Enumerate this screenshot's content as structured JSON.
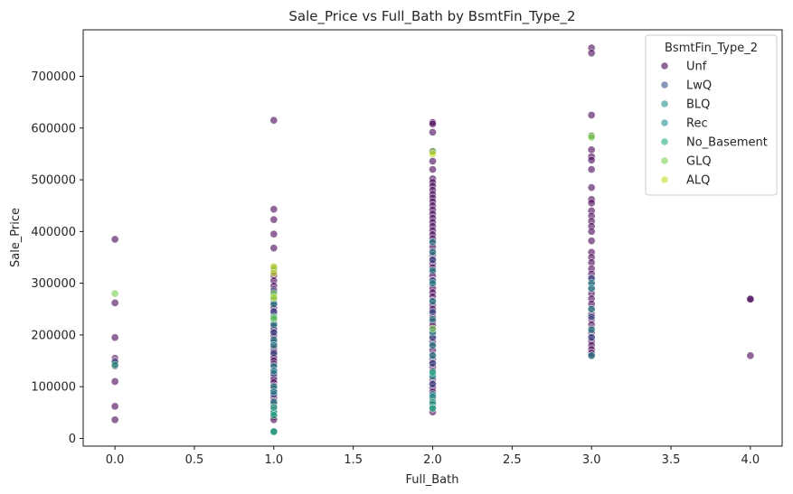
{
  "chart_data": {
    "type": "scatter",
    "title": "Sale_Price vs Full_Bath by BsmtFin_Type_2",
    "xlabel": "Full_Bath",
    "ylabel": "Sale_Price",
    "xlim": [
      -0.2,
      4.2
    ],
    "ylim": [
      -15000,
      790000
    ],
    "x_ticks": [
      0.0,
      0.5,
      1.0,
      1.5,
      2.0,
      2.5,
      3.0,
      3.5,
      4.0
    ],
    "x_tick_labels": [
      "0.0",
      "0.5",
      "1.0",
      "1.5",
      "2.0",
      "2.5",
      "3.0",
      "3.5",
      "4.0"
    ],
    "y_ticks": [
      0,
      100000,
      200000,
      300000,
      400000,
      500000,
      600000,
      700000
    ],
    "y_tick_labels": [
      "0",
      "100000",
      "200000",
      "300000",
      "400000",
      "500000",
      "600000",
      "700000"
    ],
    "grid": false,
    "legend": {
      "title": "BsmtFin_Type_2",
      "placement": "top-right"
    },
    "marker_alpha": 0.6,
    "series": [
      {
        "name": "Unf",
        "color": "#440154",
        "points": [
          [
            0,
            385000
          ],
          [
            0,
            262000
          ],
          [
            0,
            195000
          ],
          [
            0,
            155000
          ],
          [
            0,
            150000
          ],
          [
            0,
            145000
          ],
          [
            0,
            140000
          ],
          [
            0,
            110000
          ],
          [
            0,
            62000
          ],
          [
            0,
            36000
          ],
          [
            1,
            615000
          ],
          [
            1,
            443000
          ],
          [
            1,
            423000
          ],
          [
            1,
            395000
          ],
          [
            1,
            368000
          ],
          [
            1,
            330000
          ],
          [
            1,
            325000
          ],
          [
            1,
            315000
          ],
          [
            1,
            305000
          ],
          [
            1,
            295000
          ],
          [
            1,
            288000
          ],
          [
            1,
            282000
          ],
          [
            1,
            276000
          ],
          [
            1,
            270000
          ],
          [
            1,
            264000
          ],
          [
            1,
            258000
          ],
          [
            1,
            252000
          ],
          [
            1,
            246000
          ],
          [
            1,
            240000
          ],
          [
            1,
            234000
          ],
          [
            1,
            228000
          ],
          [
            1,
            222000
          ],
          [
            1,
            216000
          ],
          [
            1,
            210000
          ],
          [
            1,
            204000
          ],
          [
            1,
            198000
          ],
          [
            1,
            192000
          ],
          [
            1,
            186000
          ],
          [
            1,
            180000
          ],
          [
            1,
            174000
          ],
          [
            1,
            168000
          ],
          [
            1,
            162000
          ],
          [
            1,
            156000
          ],
          [
            1,
            150000
          ],
          [
            1,
            144000
          ],
          [
            1,
            138000
          ],
          [
            1,
            132000
          ],
          [
            1,
            126000
          ],
          [
            1,
            120000
          ],
          [
            1,
            114000
          ],
          [
            1,
            108000
          ],
          [
            1,
            102000
          ],
          [
            1,
            96000
          ],
          [
            1,
            90000
          ],
          [
            1,
            84000
          ],
          [
            1,
            78000
          ],
          [
            1,
            72000
          ],
          [
            1,
            66000
          ],
          [
            1,
            60000
          ],
          [
            1,
            54000
          ],
          [
            1,
            48000
          ],
          [
            1,
            42000
          ],
          [
            1,
            36000
          ],
          [
            1,
            13000
          ],
          [
            2,
            611000
          ],
          [
            2,
            608000
          ],
          [
            2,
            592000
          ],
          [
            2,
            555000
          ],
          [
            2,
            536000
          ],
          [
            2,
            520000
          ],
          [
            2,
            502000
          ],
          [
            2,
            495000
          ],
          [
            2,
            488000
          ],
          [
            2,
            480000
          ],
          [
            2,
            472000
          ],
          [
            2,
            465000
          ],
          [
            2,
            458000
          ],
          [
            2,
            450000
          ],
          [
            2,
            442000
          ],
          [
            2,
            434000
          ],
          [
            2,
            426000
          ],
          [
            2,
            418000
          ],
          [
            2,
            410000
          ],
          [
            2,
            402000
          ],
          [
            2,
            394000
          ],
          [
            2,
            386000
          ],
          [
            2,
            378000
          ],
          [
            2,
            370000
          ],
          [
            2,
            362000
          ],
          [
            2,
            354000
          ],
          [
            2,
            346000
          ],
          [
            2,
            338000
          ],
          [
            2,
            330000
          ],
          [
            2,
            322000
          ],
          [
            2,
            314000
          ],
          [
            2,
            306000
          ],
          [
            2,
            298000
          ],
          [
            2,
            290000
          ],
          [
            2,
            282000
          ],
          [
            2,
            274000
          ],
          [
            2,
            266000
          ],
          [
            2,
            258000
          ],
          [
            2,
            250000
          ],
          [
            2,
            242000
          ],
          [
            2,
            234000
          ],
          [
            2,
            226000
          ],
          [
            2,
            218000
          ],
          [
            2,
            210000
          ],
          [
            2,
            202000
          ],
          [
            2,
            194000
          ],
          [
            2,
            186000
          ],
          [
            2,
            178000
          ],
          [
            2,
            170000
          ],
          [
            2,
            162000
          ],
          [
            2,
            154000
          ],
          [
            2,
            146000
          ],
          [
            2,
            138000
          ],
          [
            2,
            130000
          ],
          [
            2,
            122000
          ],
          [
            2,
            114000
          ],
          [
            2,
            106000
          ],
          [
            2,
            98000
          ],
          [
            2,
            90000
          ],
          [
            2,
            82000
          ],
          [
            2,
            74000
          ],
          [
            2,
            66000
          ],
          [
            2,
            58000
          ],
          [
            2,
            51000
          ],
          [
            3,
            755000
          ],
          [
            3,
            745000
          ],
          [
            3,
            625000
          ],
          [
            3,
            585000
          ],
          [
            3,
            558000
          ],
          [
            3,
            545000
          ],
          [
            3,
            538000
          ],
          [
            3,
            520000
          ],
          [
            3,
            485000
          ],
          [
            3,
            462000
          ],
          [
            3,
            455000
          ],
          [
            3,
            440000
          ],
          [
            3,
            430000
          ],
          [
            3,
            420000
          ],
          [
            3,
            410000
          ],
          [
            3,
            400000
          ],
          [
            3,
            382000
          ],
          [
            3,
            360000
          ],
          [
            3,
            350000
          ],
          [
            3,
            340000
          ],
          [
            3,
            328000
          ],
          [
            3,
            318000
          ],
          [
            3,
            308000
          ],
          [
            3,
            300000
          ],
          [
            3,
            290000
          ],
          [
            3,
            280000
          ],
          [
            3,
            270000
          ],
          [
            3,
            260000
          ],
          [
            3,
            250000
          ],
          [
            3,
            240000
          ],
          [
            3,
            230000
          ],
          [
            3,
            220000
          ],
          [
            3,
            212000
          ],
          [
            3,
            204000
          ],
          [
            3,
            196000
          ],
          [
            3,
            188000
          ],
          [
            3,
            180000
          ],
          [
            3,
            172000
          ],
          [
            3,
            165000
          ],
          [
            3,
            160000
          ],
          [
            4,
            270000
          ],
          [
            4,
            269000
          ],
          [
            4,
            160000
          ]
        ]
      },
      {
        "name": "LwQ",
        "color": "#3b528b",
        "points": [
          [
            0,
            148000
          ],
          [
            1,
            285000
          ],
          [
            1,
            245000
          ],
          [
            1,
            205000
          ],
          [
            1,
            165000
          ],
          [
            1,
            125000
          ],
          [
            1,
            85000
          ],
          [
            1,
            55000
          ],
          [
            2,
            345000
          ],
          [
            2,
            305000
          ],
          [
            2,
            245000
          ],
          [
            2,
            195000
          ],
          [
            2,
            145000
          ],
          [
            2,
            105000
          ],
          [
            2,
            65000
          ],
          [
            3,
            310000
          ],
          [
            3,
            235000
          ],
          [
            3,
            195000
          ]
        ]
      },
      {
        "name": "BLQ",
        "color": "#21918c",
        "points": [
          [
            1,
            270000
          ],
          [
            1,
            230000
          ],
          [
            1,
            190000
          ],
          [
            1,
            140000
          ],
          [
            1,
            100000
          ],
          [
            1,
            70000
          ],
          [
            1,
            50000
          ],
          [
            2,
            380000
          ],
          [
            2,
            325000
          ],
          [
            2,
            265000
          ],
          [
            2,
            205000
          ],
          [
            2,
            160000
          ],
          [
            2,
            125000
          ],
          [
            2,
            85000
          ],
          [
            2,
            60000
          ],
          [
            3,
            300000
          ],
          [
            3,
            250000
          ],
          [
            3,
            160000
          ]
        ]
      },
      {
        "name": "Rec",
        "color": "#21918c",
        "points": [
          [
            1,
            260000
          ],
          [
            1,
            220000
          ],
          [
            1,
            180000
          ],
          [
            1,
            130000
          ],
          [
            1,
            90000
          ],
          [
            1,
            50000
          ],
          [
            1,
            13000
          ],
          [
            2,
            360000
          ],
          [
            2,
            300000
          ],
          [
            2,
            230000
          ],
          [
            2,
            180000
          ],
          [
            2,
            120000
          ],
          [
            2,
            80000
          ],
          [
            3,
            290000
          ],
          [
            3,
            210000
          ]
        ]
      },
      {
        "name": "No_Basement",
        "color": "#27ad81",
        "points": [
          [
            0,
            142000
          ],
          [
            1,
            275000
          ],
          [
            1,
            235000
          ],
          [
            1,
            60000
          ],
          [
            1,
            45000
          ],
          [
            1,
            13000
          ],
          [
            2,
            128000
          ],
          [
            2,
            70000
          ],
          [
            2,
            58000
          ]
        ]
      },
      {
        "name": "GLQ",
        "color": "#7ad151",
        "points": [
          [
            0,
            280000
          ],
          [
            1,
            328000
          ],
          [
            1,
            280000
          ],
          [
            1,
            232000
          ],
          [
            2,
            555000
          ],
          [
            2,
            212000
          ],
          [
            3,
            585000
          ],
          [
            3,
            582000
          ]
        ]
      },
      {
        "name": "ALQ",
        "color": "#c2df23",
        "points": [
          [
            1,
            332000
          ],
          [
            1,
            320000
          ],
          [
            1,
            272000
          ],
          [
            2,
            550000
          ]
        ]
      }
    ]
  }
}
